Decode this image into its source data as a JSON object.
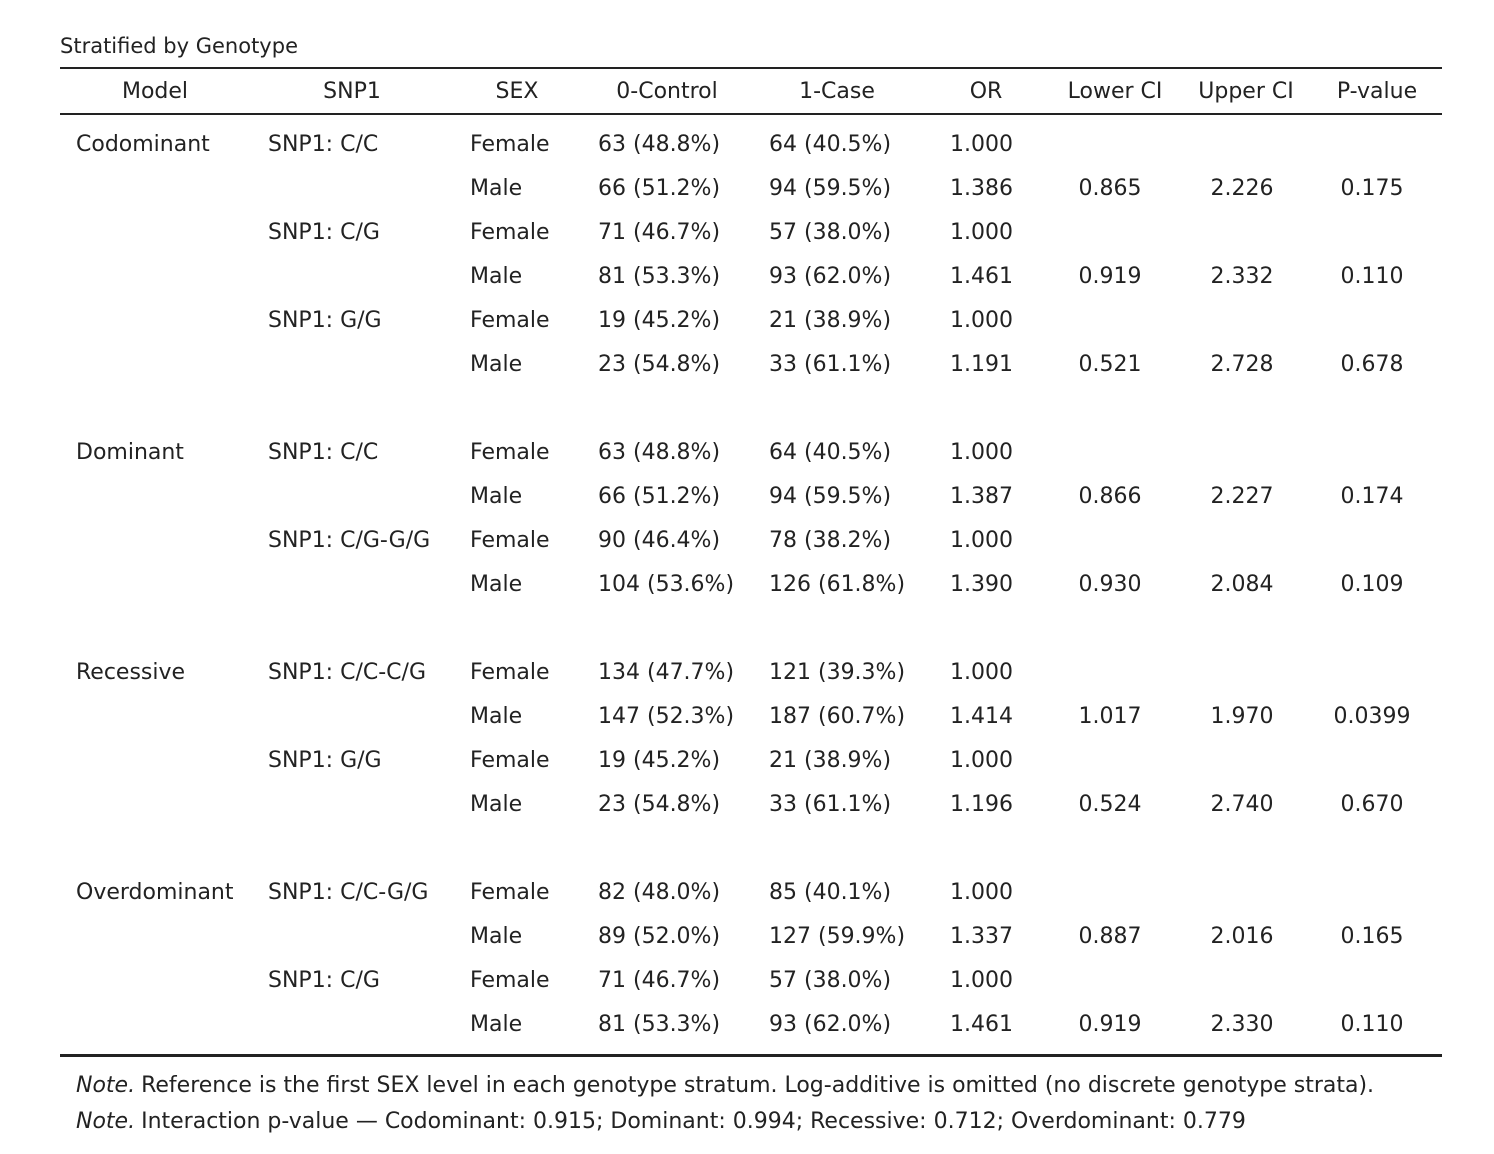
{
  "title": "Stratified by Genotype",
  "columns": [
    "Model",
    "SNP1",
    "SEX",
    "0-Control",
    "1-Case",
    "OR",
    "Lower CI",
    "Upper CI",
    "P-value"
  ],
  "groups": [
    {
      "rows": [
        [
          "Codominant",
          "SNP1: C/C",
          "Female",
          "63 (48.8%)",
          "64 (40.5%)",
          "1.000",
          null,
          null,
          null
        ],
        [
          null,
          null,
          "Male",
          "66 (51.2%)",
          "94 (59.5%)",
          "1.386",
          "0.865",
          "2.226",
          "0.175"
        ],
        [
          null,
          "SNP1: C/G",
          "Female",
          "71 (46.7%)",
          "57 (38.0%)",
          "1.000",
          null,
          null,
          null
        ],
        [
          null,
          null,
          "Male",
          "81 (53.3%)",
          "93 (62.0%)",
          "1.461",
          "0.919",
          "2.332",
          "0.110"
        ],
        [
          null,
          "SNP1: G/G",
          "Female",
          "19 (45.2%)",
          "21 (38.9%)",
          "1.000",
          null,
          null,
          null
        ],
        [
          null,
          null,
          "Male",
          "23 (54.8%)",
          "33 (61.1%)",
          "1.191",
          "0.521",
          "2.728",
          "0.678"
        ]
      ]
    },
    {
      "rows": [
        [
          "Dominant",
          "SNP1: C/C",
          "Female",
          "63 (48.8%)",
          "64 (40.5%)",
          "1.000",
          null,
          null,
          null
        ],
        [
          null,
          null,
          "Male",
          "66 (51.2%)",
          "94 (59.5%)",
          "1.387",
          "0.866",
          "2.227",
          "0.174"
        ],
        [
          null,
          "SNP1: C/G-G/G",
          "Female",
          "90 (46.4%)",
          "78 (38.2%)",
          "1.000",
          null,
          null,
          null
        ],
        [
          null,
          null,
          "Male",
          "104 (53.6%)",
          "126 (61.8%)",
          "1.390",
          "0.930",
          "2.084",
          "0.109"
        ]
      ]
    },
    {
      "rows": [
        [
          "Recessive",
          "SNP1: C/C-C/G",
          "Female",
          "134 (47.7%)",
          "121 (39.3%)",
          "1.000",
          null,
          null,
          null
        ],
        [
          null,
          null,
          "Male",
          "147 (52.3%)",
          "187 (60.7%)",
          "1.414",
          "1.017",
          "1.970",
          "0.0399"
        ],
        [
          null,
          "SNP1: G/G",
          "Female",
          "19 (45.2%)",
          "21 (38.9%)",
          "1.000",
          null,
          null,
          null
        ],
        [
          null,
          null,
          "Male",
          "23 (54.8%)",
          "33 (61.1%)",
          "1.196",
          "0.524",
          "2.740",
          "0.670"
        ]
      ]
    },
    {
      "rows": [
        [
          "Overdominant",
          "SNP1: C/C-G/G",
          "Female",
          "82 (48.0%)",
          "85 (40.1%)",
          "1.000",
          null,
          null,
          null
        ],
        [
          null,
          null,
          "Male",
          "89 (52.0%)",
          "127 (59.9%)",
          "1.337",
          "0.887",
          "2.016",
          "0.165"
        ],
        [
          null,
          "SNP1: C/G",
          "Female",
          "71 (46.7%)",
          "57 (38.0%)",
          "1.000",
          null,
          null,
          null
        ],
        [
          null,
          null,
          "Male",
          "81 (53.3%)",
          "93 (62.0%)",
          "1.461",
          "0.919",
          "2.330",
          "0.110"
        ]
      ]
    }
  ],
  "notes": [
    {
      "label": "Note.",
      "text": "Reference is the first SEX level in each genotype stratum. Log-additive is omitted (no discrete genotype strata)."
    },
    {
      "label": "Note.",
      "text": "Interaction p-value — Codominant: 0.915; Dominant: 0.994; Recessive: 0.712; Overdominant: 0.779"
    }
  ]
}
